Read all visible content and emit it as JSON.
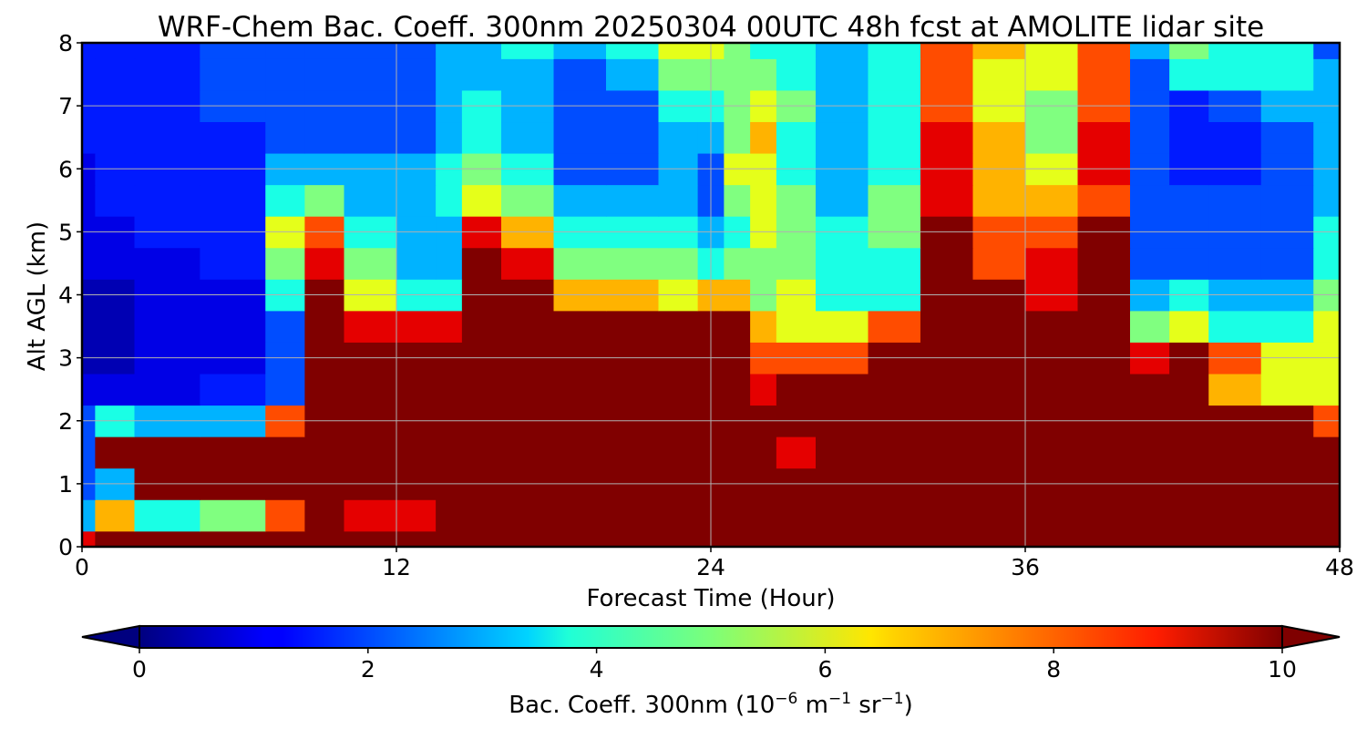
{
  "chart_data": {
    "type": "heatmap",
    "title": "WRF-Chem Bac. Coeff. 300nm  20250304 00UTC 48h fcst at AMOLITE lidar site",
    "xlabel": "Forecast Time (Hour)",
    "ylabel": "Alt AGL (km)",
    "xlim": [
      0,
      48
    ],
    "ylim": [
      0,
      8
    ],
    "xticks": [
      "0",
      "12",
      "24",
      "36",
      "48"
    ],
    "yticks": [
      "0",
      "1",
      "2",
      "3",
      "4",
      "5",
      "6",
      "7",
      "8"
    ],
    "grid": true,
    "colormap": "jet",
    "colorbar": {
      "label_prefix": "Bac. Coeff. 300nm  (10",
      "label_exp1": "−6",
      "label_mid": " m",
      "label_exp2": "−1",
      "label_mid2": " sr",
      "label_exp3": "−1",
      "label_suffix": ")",
      "range": [
        0,
        10
      ],
      "ticks": [
        "0",
        "2",
        "4",
        "6",
        "8",
        "10"
      ],
      "extend": "both"
    },
    "x": [
      0,
      1,
      3,
      6,
      8,
      9,
      11,
      13,
      14,
      15,
      17,
      19,
      21,
      23,
      24,
      25,
      26,
      27,
      29,
      31,
      33,
      35,
      37,
      39,
      41,
      42,
      44,
      46,
      48
    ],
    "y": [
      0,
      0.5,
      1,
      1.5,
      2,
      2.5,
      3,
      3.5,
      4,
      4.5,
      5,
      5.5,
      6,
      6.5,
      7,
      7.5,
      8
    ],
    "values": [
      [
        9,
        10,
        10,
        10,
        10,
        10,
        10,
        10,
        10,
        10,
        10,
        10,
        10,
        10,
        10,
        10,
        10,
        10,
        10,
        10,
        10,
        10,
        10,
        10,
        10,
        10,
        10,
        10,
        10
      ],
      [
        3,
        7,
        4,
        5,
        8,
        10,
        9,
        9,
        10,
        10,
        10,
        10,
        10,
        10,
        10,
        10,
        10,
        10,
        10,
        10,
        10,
        10,
        10,
        10,
        10,
        10,
        10,
        10,
        10
      ],
      [
        2,
        3,
        10,
        10,
        10,
        10,
        10,
        10,
        10,
        10,
        10,
        10,
        10,
        10,
        10,
        10,
        10,
        10,
        10,
        10,
        10,
        10,
        10,
        10,
        10,
        10,
        10,
        10,
        10
      ],
      [
        2,
        10,
        10,
        10,
        10,
        10,
        10,
        10,
        10,
        10,
        10,
        10,
        10,
        10,
        10,
        10,
        10,
        9,
        10,
        10,
        10,
        10,
        10,
        10,
        10,
        10,
        10,
        10,
        10
      ],
      [
        2,
        4,
        3,
        3,
        8,
        10,
        10,
        10,
        10,
        10,
        10,
        10,
        10,
        10,
        10,
        10,
        10,
        10,
        10,
        10,
        10,
        10,
        10,
        10,
        10,
        10,
        10,
        10,
        8
      ],
      [
        1,
        1,
        1,
        1.5,
        2,
        10,
        10,
        10,
        10,
        10,
        10,
        10,
        10,
        10,
        10,
        10,
        9,
        10,
        10,
        10,
        10,
        10,
        10,
        10,
        10,
        10,
        7,
        6,
        6
      ],
      [
        0.5,
        0.5,
        1,
        1,
        2,
        10,
        10,
        10,
        10,
        10,
        10,
        10,
        10,
        10,
        10,
        10,
        8,
        8,
        8,
        10,
        10,
        10,
        10,
        10,
        9,
        10,
        8,
        6,
        6
      ],
      [
        0.5,
        0.5,
        1,
        1,
        2,
        10,
        9,
        9,
        9,
        10,
        10,
        10,
        10,
        10,
        10,
        10,
        7,
        6,
        6,
        8,
        10,
        10,
        10,
        10,
        5,
        6,
        4,
        4,
        6
      ],
      [
        0.5,
        0.5,
        1,
        1,
        4,
        10,
        6,
        4,
        4,
        10,
        10,
        7,
        7,
        6,
        7,
        7,
        5,
        6,
        4,
        4,
        10,
        10,
        9,
        10,
        3,
        4,
        3,
        3,
        5
      ],
      [
        1,
        1,
        1,
        1.5,
        5,
        9,
        5,
        3,
        3,
        10,
        9,
        5,
        5,
        5,
        4,
        5,
        5,
        5,
        4,
        4,
        10,
        8,
        9,
        10,
        2,
        2,
        2,
        2,
        4
      ],
      [
        1,
        1,
        1.5,
        1.5,
        6,
        8,
        4,
        3,
        3,
        9,
        7,
        4,
        4,
        4,
        3,
        4,
        6,
        5,
        4,
        5,
        10,
        8,
        8,
        10,
        2,
        2,
        2,
        2,
        4
      ],
      [
        1,
        1.5,
        1.5,
        1.5,
        4,
        5,
        3,
        3,
        4,
        6,
        5,
        3,
        3,
        3,
        2,
        5,
        6,
        5,
        3,
        5,
        9,
        7,
        7,
        8,
        2,
        2,
        2,
        2,
        3
      ],
      [
        1,
        1.5,
        1.5,
        1.5,
        3,
        3,
        3,
        3,
        4,
        5,
        4,
        2,
        2,
        3,
        2,
        6,
        6,
        4,
        3,
        4,
        9,
        7,
        6,
        9,
        2,
        1.5,
        1.5,
        2,
        3
      ],
      [
        1.5,
        1.5,
        1.5,
        1.5,
        2,
        2,
        2,
        2,
        3,
        4,
        3,
        2,
        2,
        3,
        3,
        5,
        7,
        4,
        3,
        4,
        9,
        7,
        5,
        9,
        2,
        1.5,
        1.5,
        2,
        3
      ],
      [
        1.5,
        1.5,
        1.5,
        2,
        2,
        2,
        2,
        2,
        3,
        4,
        3,
        2,
        2,
        4,
        4,
        5,
        6,
        5,
        3,
        4,
        8,
        6,
        5,
        8,
        2,
        1.5,
        2,
        3,
        3
      ],
      [
        1.5,
        1.5,
        1.5,
        2,
        2,
        2,
        2,
        2,
        3,
        3,
        3,
        2,
        3,
        5,
        5,
        5,
        5,
        4,
        3,
        4,
        8,
        6,
        6,
        8,
        2,
        4,
        4,
        4,
        3
      ],
      [
        1.5,
        1.5,
        1.5,
        2,
        2,
        2,
        2,
        2,
        3,
        3,
        4,
        3,
        4,
        6,
        6,
        5,
        4,
        4,
        3,
        4,
        8,
        7,
        6,
        8,
        3,
        5,
        4,
        4,
        2
      ]
    ]
  }
}
